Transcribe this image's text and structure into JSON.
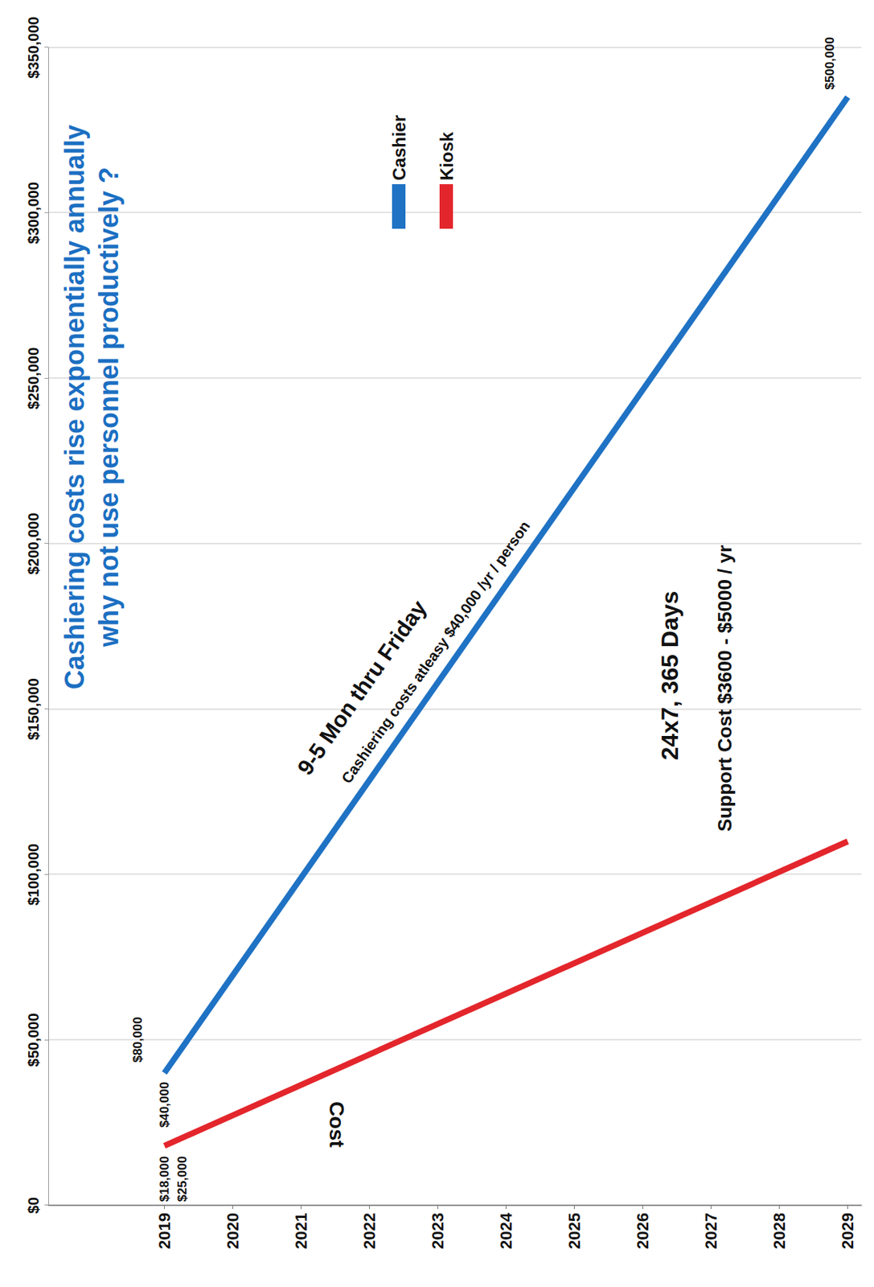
{
  "chart_data": {
    "type": "line",
    "title": "Cashiering costs rise exponentially annually\nwhy not use personnel productively ?",
    "ylabel": "Cost",
    "x": [
      2019,
      2029
    ],
    "xlim": [
      2017.3,
      2029.2
    ],
    "xticks": [
      2019,
      2020,
      2021,
      2022,
      2023,
      2024,
      2025,
      2026,
      2027,
      2028,
      2029
    ],
    "ylim": [
      0,
      350000
    ],
    "yticks": [
      {
        "value": 0,
        "label": "$0"
      },
      {
        "value": 50000,
        "label": "$50,000"
      },
      {
        "value": 100000,
        "label": "$100,000"
      },
      {
        "value": 150000,
        "label": "$150,000"
      },
      {
        "value": 200000,
        "label": "$200,000"
      },
      {
        "value": 250000,
        "label": "$250,000"
      },
      {
        "value": 300000,
        "label": "$300,000"
      },
      {
        "value": 350000,
        "label": "$350,000"
      }
    ],
    "grid": true,
    "legend": "top",
    "series": [
      {
        "name": "Cashier",
        "color": "#1f72c4",
        "values": [
          40000,
          335000
        ]
      },
      {
        "name": "Kiosk",
        "color": "#e3262c",
        "values": [
          18000,
          110000
        ]
      }
    ],
    "annotations": [
      {
        "text": "$40,000",
        "series": "Cashier"
      },
      {
        "text": "$80,000",
        "series": "Cashier"
      },
      {
        "text": "9-5 Mon thru Friday",
        "series": "Cashier"
      },
      {
        "text": "Cashiering costs atleasy $40,000 /yr / person",
        "series": "Cashier"
      },
      {
        "text": "$500,000",
        "series": "Cashier"
      },
      {
        "text": "$18,000",
        "series": "Kiosk"
      },
      {
        "text": "$25,000",
        "series": "Kiosk"
      },
      {
        "text": "24x7, 365 Days",
        "series": "Kiosk"
      },
      {
        "text": "Support Cost $3600 - $5000 / yr",
        "series": "Kiosk"
      }
    ]
  }
}
